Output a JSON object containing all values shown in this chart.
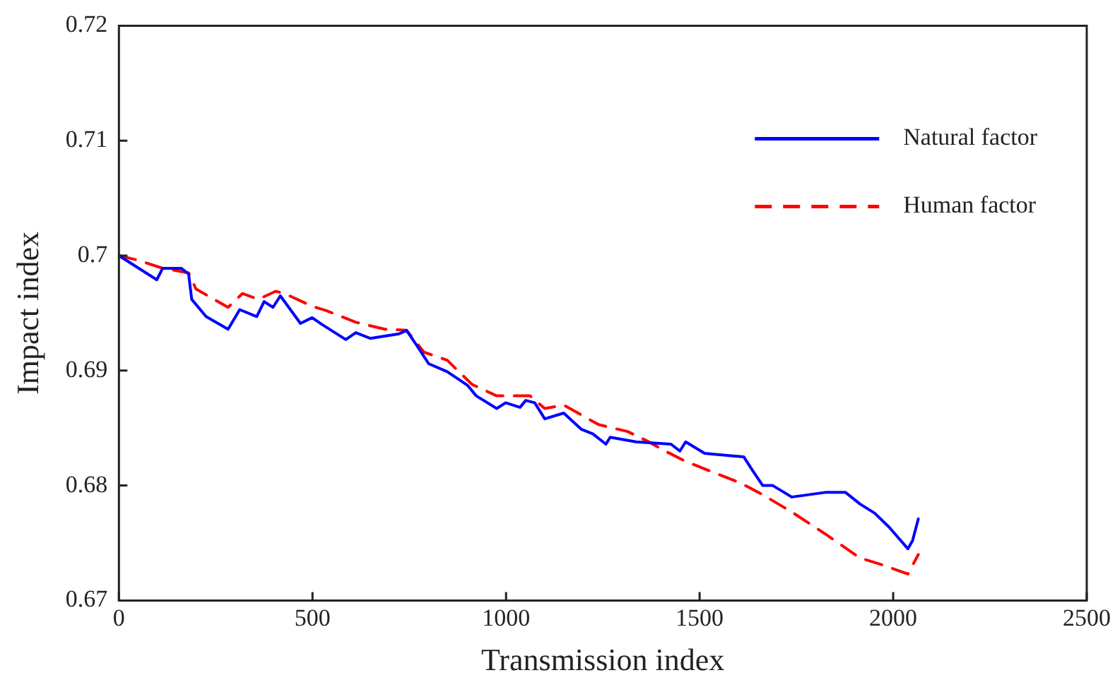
{
  "chart_data": {
    "type": "line",
    "xlabel": "Transmission index",
    "ylabel": "Impact index",
    "xlim": [
      0,
      2500
    ],
    "ylim": [
      0.67,
      0.72
    ],
    "xticks": [
      0,
      500,
      1000,
      1500,
      2000,
      2500
    ],
    "yticks": [
      0.67,
      0.68,
      0.69,
      0.7,
      0.71,
      0.72
    ],
    "grid": false,
    "legend": "top right",
    "marker": "none",
    "series": [
      {
        "name": "Natural factor",
        "color": "#0000ff",
        "line_style": "solid",
        "x": [
          0,
          98,
          113,
          161,
          180,
          188,
          225,
          282,
          312,
          356,
          375,
          398,
          417,
          469,
          499,
          525,
          586,
          612,
          649,
          724,
          743,
          773,
          800,
          848,
          901,
          923,
          976,
          999,
          1036,
          1051,
          1074,
          1100,
          1149,
          1194,
          1224,
          1258,
          1269,
          1336,
          1426,
          1449,
          1464,
          1513,
          1577,
          1614,
          1633,
          1663,
          1689,
          1738,
          1824,
          1877,
          1914,
          1952,
          1989,
          2038,
          2050,
          2065
        ],
        "values": [
          0.7,
          0.6979,
          0.6989,
          0.6989,
          0.6984,
          0.6962,
          0.6947,
          0.6936,
          0.6953,
          0.6947,
          0.696,
          0.6955,
          0.6965,
          0.6941,
          0.6946,
          0.694,
          0.6927,
          0.6933,
          0.6928,
          0.6932,
          0.6935,
          0.692,
          0.6906,
          0.6899,
          0.6887,
          0.6878,
          0.6867,
          0.6872,
          0.6868,
          0.6874,
          0.6872,
          0.6858,
          0.6863,
          0.6849,
          0.6845,
          0.6836,
          0.6842,
          0.6838,
          0.6836,
          0.683,
          0.6838,
          0.6828,
          0.6826,
          0.6825,
          0.6815,
          0.68,
          0.68,
          0.679,
          0.6794,
          0.6794,
          0.6784,
          0.6776,
          0.6764,
          0.6745,
          0.6752,
          0.6771
        ]
      },
      {
        "name": "Human factor",
        "color": "#ff0000",
        "line_style": "dashed",
        "x": [
          0,
          49,
          113,
          180,
          199,
          282,
          319,
          360,
          405,
          428,
          499,
          537,
          612,
          687,
          743,
          788,
          848,
          912,
          976,
          1062,
          1100,
          1149,
          1239,
          1314,
          1363,
          1411,
          1464,
          1539,
          1607,
          1663,
          1738,
          1824,
          1914,
          1963,
          2038,
          2065
        ],
        "values": [
          0.7,
          0.6996,
          0.6989,
          0.6985,
          0.6971,
          0.6955,
          0.6967,
          0.6962,
          0.6969,
          0.6967,
          0.6956,
          0.6952,
          0.6942,
          0.6936,
          0.6935,
          0.6916,
          0.6909,
          0.6888,
          0.6878,
          0.6878,
          0.6867,
          0.687,
          0.6853,
          0.6847,
          0.6839,
          0.683,
          0.6821,
          0.6811,
          0.6802,
          0.6792,
          0.6777,
          0.6758,
          0.6737,
          0.6732,
          0.6723,
          0.674
        ]
      }
    ]
  }
}
